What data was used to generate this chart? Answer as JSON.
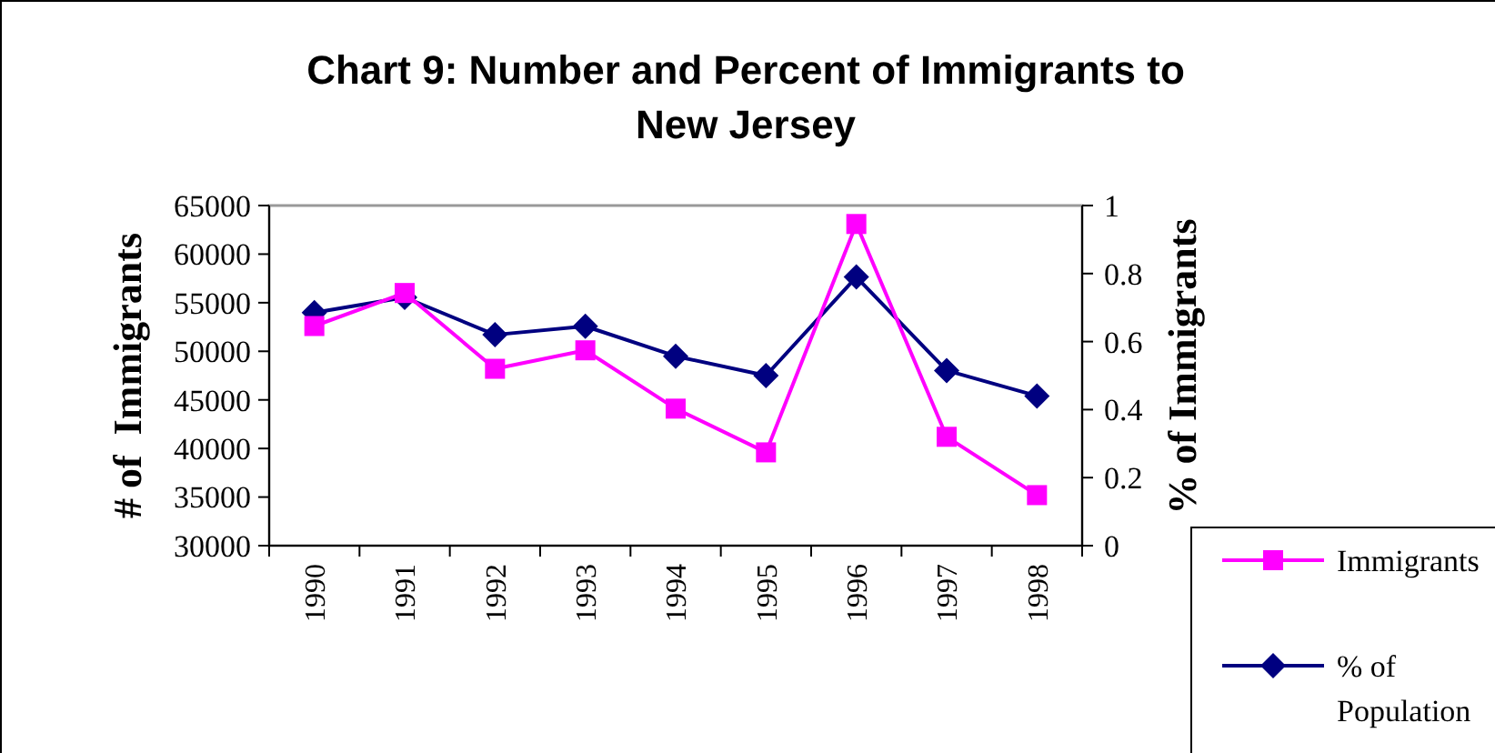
{
  "chart_data": {
    "type": "line",
    "title": "Chart 9: Number and Percent of Immigrants to New Jersey",
    "xlabel": null,
    "ylabel": "# of  Immigrants",
    "y2label": "% of Immigrants",
    "categories": [
      "1990",
      "1991",
      "1992",
      "1993",
      "1994",
      "1995",
      "1996",
      "1997",
      "1998"
    ],
    "series": [
      {
        "name": "Immigrants",
        "color": "#ff00ff",
        "marker": "square",
        "values": [
          52600,
          56000,
          48200,
          50100,
          44100,
          39600,
          63100,
          41200,
          35200
        ]
      },
      {
        "name": "% of Population",
        "color": "#000080",
        "marker": "diamond",
        "axis": "y2",
        "values": [
          0.685,
          0.73,
          0.62,
          0.645,
          0.557,
          0.5,
          0.79,
          0.515,
          0.44
        ]
      }
    ],
    "ylim": [
      30000,
      65000
    ],
    "yticks": [
      30000,
      35000,
      40000,
      45000,
      50000,
      55000,
      60000,
      65000
    ],
    "y2lim": [
      0,
      1
    ],
    "y2ticks": [
      0,
      0.2,
      0.4,
      0.6,
      0.8,
      1
    ],
    "grid": false,
    "legend": "bottom right"
  }
}
